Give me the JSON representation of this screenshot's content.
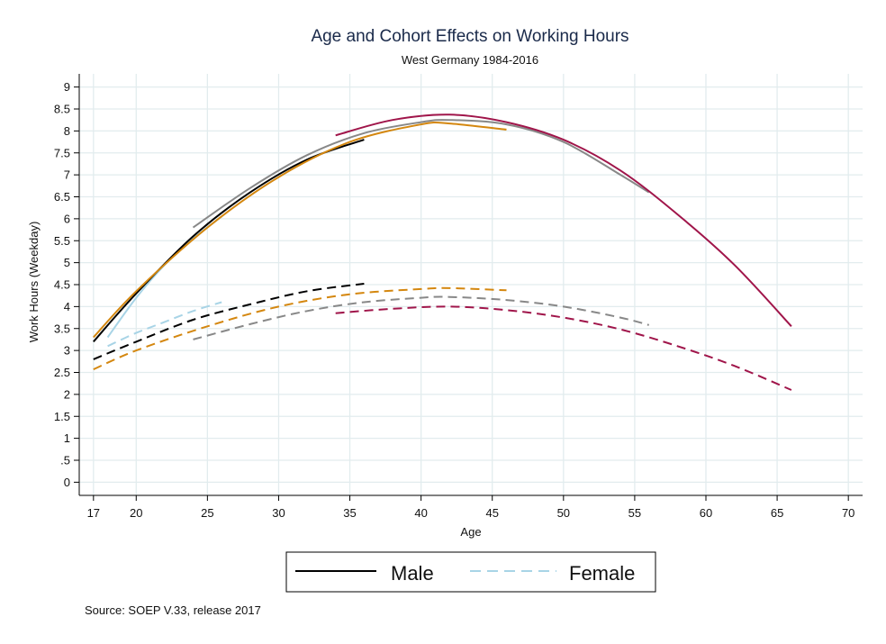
{
  "chart_data": {
    "type": "line",
    "title": "Age and Cohort Effects on Working Hours",
    "subtitle": "West Germany 1984-2016",
    "xlabel": "Age",
    "ylabel": "Work Hours (Weekday)",
    "xlim": [
      16,
      71
    ],
    "ylim": [
      -0.3,
      9.3
    ],
    "xticks": [
      17,
      20,
      25,
      30,
      35,
      40,
      45,
      50,
      55,
      60,
      65,
      70
    ],
    "yticks": [
      {
        "v": 0,
        "label": "0"
      },
      {
        "v": 0.5,
        "label": ".5"
      },
      {
        "v": 1,
        "label": "1"
      },
      {
        "v": 1.5,
        "label": "1.5"
      },
      {
        "v": 2,
        "label": "2"
      },
      {
        "v": 2.5,
        "label": "2.5"
      },
      {
        "v": 3,
        "label": "3"
      },
      {
        "v": 3.5,
        "label": "3.5"
      },
      {
        "v": 4,
        "label": "4"
      },
      {
        "v": 4.5,
        "label": "4.5"
      },
      {
        "v": 5,
        "label": "5"
      },
      {
        "v": 5.5,
        "label": "5.5"
      },
      {
        "v": 6,
        "label": "6"
      },
      {
        "v": 6.5,
        "label": "6.5"
      },
      {
        "v": 7,
        "label": "7"
      },
      {
        "v": 7.5,
        "label": "7.5"
      },
      {
        "v": 8,
        "label": "8"
      },
      {
        "v": 8.5,
        "label": "8.5"
      },
      {
        "v": 9,
        "label": "9"
      }
    ],
    "grid": true,
    "legend": {
      "position": "bottom",
      "entries": [
        {
          "label": "Male",
          "style": "solid",
          "color": "#000000"
        },
        {
          "label": "Female",
          "style": "dashed",
          "color": "#a8d4e6"
        }
      ]
    },
    "note": "Source: SOEP V.33, release 2017",
    "series": [
      {
        "sex": "male",
        "color": "#a8d4e6",
        "style": "solid",
        "x": [
          18,
          20,
          22,
          24,
          26
        ],
        "y": [
          3.3,
          4.2,
          4.95,
          5.55,
          6.05
        ]
      },
      {
        "sex": "male",
        "color": "#000000",
        "style": "solid",
        "x": [
          17,
          20,
          24,
          28,
          32,
          36
        ],
        "y": [
          3.2,
          4.3,
          5.6,
          6.6,
          7.35,
          7.8
        ]
      },
      {
        "sex": "male",
        "color": "#d4870f",
        "style": "solid",
        "x": [
          17,
          20,
          25,
          30,
          35,
          40,
          42,
          46
        ],
        "y": [
          3.3,
          4.35,
          5.8,
          6.95,
          7.75,
          8.15,
          8.17,
          8.03
        ]
      },
      {
        "sex": "male",
        "color": "#888888",
        "style": "solid",
        "x": [
          24,
          28,
          32,
          36,
          40,
          42,
          46,
          50,
          54,
          56
        ],
        "y": [
          5.8,
          6.7,
          7.45,
          7.95,
          8.2,
          8.25,
          8.15,
          7.75,
          7.0,
          6.6
        ]
      },
      {
        "sex": "male",
        "color": "#a0154a",
        "style": "solid",
        "x": [
          34,
          38,
          42,
          46,
          50,
          54,
          58,
          62,
          66
        ],
        "y": [
          7.9,
          8.25,
          8.37,
          8.2,
          7.8,
          7.1,
          6.1,
          4.95,
          3.55
        ]
      },
      {
        "sex": "female",
        "color": "#a8d4e6",
        "style": "dashed",
        "x": [
          18,
          20,
          22,
          24,
          26
        ],
        "y": [
          3.1,
          3.4,
          3.65,
          3.9,
          4.1
        ]
      },
      {
        "sex": "female",
        "color": "#000000",
        "style": "dashed",
        "x": [
          17,
          20,
          24,
          28,
          32,
          36
        ],
        "y": [
          2.8,
          3.2,
          3.7,
          4.05,
          4.35,
          4.52
        ]
      },
      {
        "sex": "female",
        "color": "#d4870f",
        "style": "dashed",
        "x": [
          17,
          20,
          25,
          30,
          35,
          40,
          42,
          46
        ],
        "y": [
          2.57,
          3.0,
          3.55,
          4.0,
          4.28,
          4.4,
          4.42,
          4.37
        ]
      },
      {
        "sex": "female",
        "color": "#888888",
        "style": "dashed",
        "x": [
          24,
          28,
          32,
          36,
          40,
          42,
          46,
          50,
          54,
          56
        ],
        "y": [
          3.25,
          3.6,
          3.9,
          4.1,
          4.2,
          4.22,
          4.15,
          4.0,
          3.75,
          3.58
        ]
      },
      {
        "sex": "female",
        "color": "#a0154a",
        "style": "dashed",
        "x": [
          34,
          38,
          42,
          46,
          50,
          54,
          58,
          62,
          66
        ],
        "y": [
          3.85,
          3.95,
          4.0,
          3.92,
          3.75,
          3.48,
          3.1,
          2.65,
          2.1
        ]
      }
    ]
  }
}
